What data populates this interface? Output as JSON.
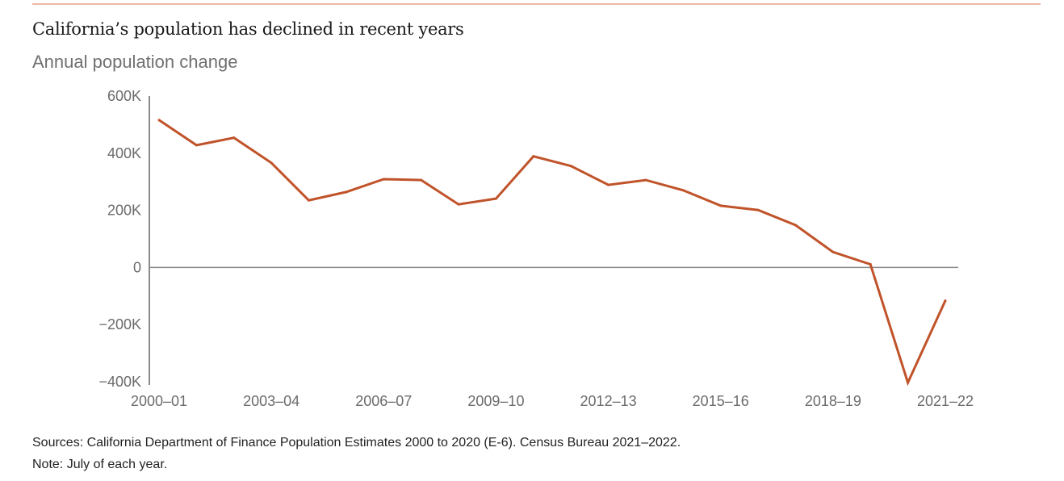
{
  "chart_data": {
    "type": "line",
    "title": "California’s population has declined in recent years",
    "subtitle": "Annual population change",
    "xlabel": "",
    "ylabel": "",
    "ylim": [
      -400000,
      600000
    ],
    "grid": false,
    "legend": "none",
    "line_color": "#c0532a",
    "zero_line_color": "#8a8a8a",
    "y_ticks": [
      {
        "value": 600000,
        "label": "600K"
      },
      {
        "value": 400000,
        "label": "400K"
      },
      {
        "value": 200000,
        "label": "200K"
      },
      {
        "value": 0,
        "label": "0"
      },
      {
        "value": -200000,
        "label": "−200K"
      },
      {
        "value": -400000,
        "label": "−400K"
      }
    ],
    "x_tick_labels": [
      "2000–01",
      "2003–04",
      "2006–07",
      "2009–10",
      "2012–13",
      "2015–16",
      "2018–19",
      "2021–22"
    ],
    "categories": [
      "2000–01",
      "2001–02",
      "2002–03",
      "2003–04",
      "2004–05",
      "2005–06",
      "2006–07",
      "2007–08",
      "2008–09",
      "2009–10",
      "2010–11",
      "2011–12",
      "2012–13",
      "2013–14",
      "2014–15",
      "2015–16",
      "2016–17",
      "2017–18",
      "2018–19",
      "2019–20",
      "2020–21",
      "2021–22"
    ],
    "series": [
      {
        "name": "Annual population change",
        "values": [
          516000,
          428000,
          454000,
          366000,
          235000,
          264000,
          309000,
          306000,
          221000,
          241000,
          389000,
          355000,
          289000,
          306000,
          270000,
          216000,
          201000,
          148000,
          54000,
          11000,
          -403000,
          -116000
        ]
      }
    ]
  },
  "footer": {
    "sources": "Sources: California Department of Finance Population Estimates 2000 to 2020 (E-6). Census Bureau 2021–2022.",
    "note": "Note: July of each year."
  }
}
